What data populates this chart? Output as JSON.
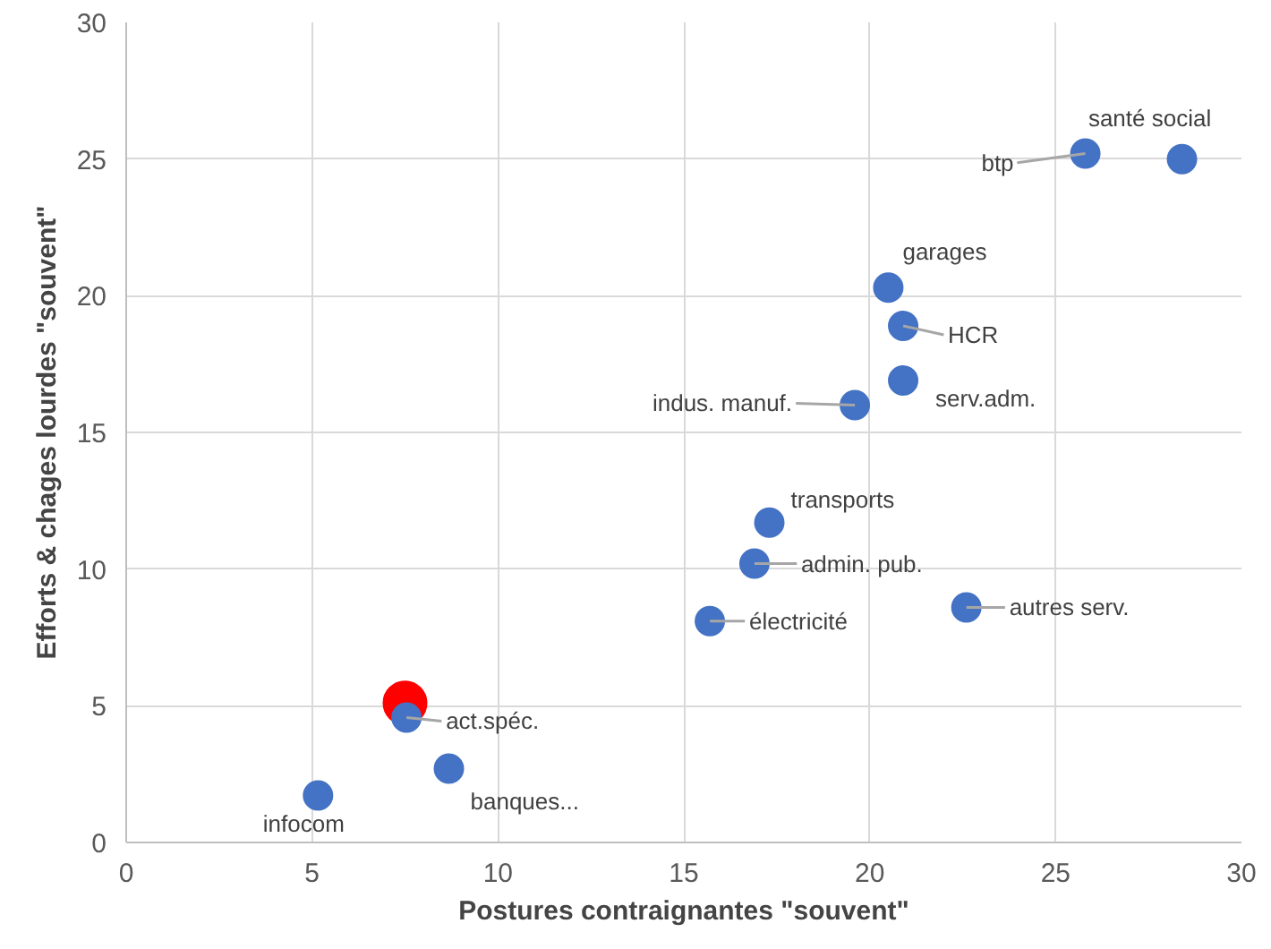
{
  "chart_data": {
    "type": "scatter",
    "xlabel": "Postures contraignantes \"souvent\"",
    "ylabel": "Efforts & chages lourdes \"souvent\"",
    "xlim": [
      0,
      30
    ],
    "ylim": [
      0,
      30
    ],
    "xticks": [
      0,
      5,
      10,
      15,
      20,
      25,
      30
    ],
    "yticks": [
      0,
      5,
      10,
      15,
      20,
      25,
      30
    ],
    "grid": true,
    "marker": "circle",
    "series": [
      {
        "color": "#4472c4",
        "x": [
          5.16,
          8.68,
          7.54,
          15.7,
          16.9,
          17.3,
          22.6,
          19.6,
          20.9,
          20.9,
          20.5,
          25.8,
          28.4
        ],
        "values": [
          1.72,
          2.7,
          4.57,
          8.1,
          10.2,
          11.7,
          8.6,
          16.0,
          16.9,
          18.9,
          20.3,
          25.2,
          25.0
        ]
      },
      {
        "color": "#ff0000",
        "x": [
          7.5
        ],
        "values": [
          5.1
        ]
      }
    ],
    "annotations": [
      {
        "text": "infocom",
        "x": 5.16,
        "y": 1.72
      },
      {
        "text": "banques...",
        "x": 8.68,
        "y": 2.7
      },
      {
        "text": "act.spéc.",
        "x": 7.54,
        "y": 4.57
      },
      {
        "text": "électricité",
        "x": 15.7,
        "y": 8.1
      },
      {
        "text": "admin. pub.",
        "x": 16.9,
        "y": 10.2
      },
      {
        "text": "transports",
        "x": 17.3,
        "y": 11.7
      },
      {
        "text": "autres serv.",
        "x": 22.6,
        "y": 8.6
      },
      {
        "text": "indus. manuf.",
        "x": 19.6,
        "y": 16.0
      },
      {
        "text": "serv.adm.",
        "x": 20.9,
        "y": 16.9
      },
      {
        "text": "HCR",
        "x": 20.9,
        "y": 18.9
      },
      {
        "text": "garages",
        "x": 20.5,
        "y": 20.3
      },
      {
        "text": "btp",
        "x": 25.8,
        "y": 25.2
      },
      {
        "text": "santé social",
        "x": 28.4,
        "y": 25.0
      }
    ]
  }
}
